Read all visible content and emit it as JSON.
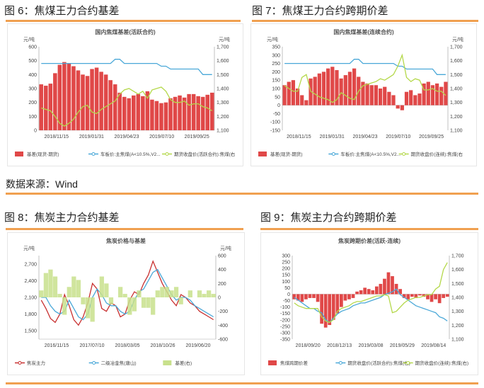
{
  "captions": {
    "fig6": "图 6：焦煤王力合约基差",
    "fig7": "图 7：焦煤王力合约跨期价差",
    "source": "数据来源：Wind",
    "fig8": "图 8：焦炭主力合约基差",
    "fig9": "图 9：焦炭主力合约跨期价差"
  },
  "chart_data": [
    {
      "type": "bar+line",
      "title": "国内焦煤基差(活跃合约)",
      "ylabel_left": "元/吨",
      "ylabel_right": "元/吨",
      "yticks_left": [
        "600",
        "500",
        "400",
        "300",
        "200",
        "100",
        "0"
      ],
      "yticks_right": [
        "1,700",
        "1,600",
        "1,500",
        "1,400",
        "1,300",
        "1,200",
        "1,100"
      ],
      "ylim_left": [
        0,
        600
      ],
      "ylim_right": [
        1100,
        1700
      ],
      "xticks": [
        "2018/11/15",
        "2019/01/31",
        "2019/04/23",
        "2019/07/10",
        "2019/09/25"
      ],
      "legend": [
        "基差(现货-期货)",
        "车板价:主焦煤(A<10.5%,V2...",
        "期货收盘价(活跃合约):焦煤(右"
      ],
      "colors": {
        "bar": "#e04848",
        "line1": "#4aa8d8",
        "line2": "#b4d84a"
      },
      "series": [
        {
          "name": "基差(现货-期货)",
          "axis": "left",
          "values": [
            330,
            320,
            335,
            410,
            470,
            490,
            480,
            460,
            430,
            400,
            390,
            440,
            450,
            420,
            400,
            360,
            330,
            270,
            240,
            230,
            250,
            260,
            245,
            280,
            220,
            210,
            195,
            200,
            230,
            240,
            250,
            235,
            260,
            260,
            245,
            240,
            255,
            270
          ]
        },
        {
          "name": "车板价:主焦煤(A<10.5%,V2...",
          "axis": "right",
          "values": [
            1580,
            1580,
            1580,
            1580,
            1580,
            1580,
            1580,
            1580,
            1580,
            1580,
            1580,
            1580,
            1580,
            1580,
            1580,
            1580,
            1610,
            1610,
            1580,
            1580,
            1580,
            1580,
            1580,
            1580,
            1580,
            1580,
            1560,
            1560,
            1540,
            1540,
            1540,
            1540,
            1540,
            1540,
            1540,
            1500,
            1500,
            1500
          ]
        },
        {
          "name": "期货收盘价(活跃合约):焦煤(右",
          "axis": "right",
          "values": [
            1260,
            1250,
            1240,
            1200,
            1150,
            1130,
            1150,
            1180,
            1230,
            1270,
            1280,
            1230,
            1220,
            1250,
            1270,
            1290,
            1310,
            1360,
            1390,
            1400,
            1380,
            1360,
            1380,
            1330,
            1390,
            1400,
            1410,
            1380,
            1320,
            1300,
            1300,
            1310,
            1280,
            1290,
            1290,
            1270,
            1260,
            1240
          ]
        }
      ]
    },
    {
      "type": "bar+line",
      "title": "国内焦煤基差(连续合约)",
      "ylabel_left": "元/吨",
      "ylabel_right": "元/吨",
      "yticks_left": [
        "350",
        "300",
        "250",
        "200",
        "150",
        "100",
        "50",
        "0",
        "-50",
        "-100",
        "-150"
      ],
      "yticks_right": [
        "1,700",
        "1,600",
        "1,500",
        "1,400",
        "1,300",
        "1,200",
        "1,100"
      ],
      "ylim_left": [
        -150,
        350
      ],
      "ylim_right": [
        1100,
        1700
      ],
      "xticks": [
        "2018/11/15",
        "2019/01/31",
        "2019/04/23",
        "2019/07/10",
        "2019/09/25"
      ],
      "legend": [
        "基差(现货-期货)",
        "车板价:主焦煤(A<10.5%,V2...",
        "期货收盘价(连续):焦煤(右"
      ],
      "colors": {
        "bar": "#e04848",
        "line1": "#4aa8d8",
        "line2": "#b4d84a"
      },
      "series": [
        {
          "name": "基差(现货-期货)",
          "axis": "left",
          "values": [
            120,
            140,
            150,
            100,
            60,
            30,
            160,
            170,
            190,
            200,
            220,
            230,
            210,
            160,
            180,
            200,
            220,
            170,
            140,
            130,
            120,
            120,
            100,
            110,
            80,
            60,
            -20,
            -30,
            80,
            90,
            60,
            70,
            130,
            140,
            120,
            130,
            110,
            140
          ]
        },
        {
          "name": "车板价:主焦煤(A<10.5%,V2...",
          "axis": "right",
          "values": [
            1580,
            1580,
            1580,
            1580,
            1580,
            1580,
            1580,
            1580,
            1580,
            1580,
            1580,
            1580,
            1580,
            1580,
            1580,
            1580,
            1610,
            1610,
            1580,
            1580,
            1580,
            1580,
            1580,
            1580,
            1580,
            1580,
            1560,
            1560,
            1540,
            1540,
            1540,
            1540,
            1540,
            1540,
            1540,
            1500,
            1500,
            1500
          ]
        },
        {
          "name": "期货收盘价(连续):焦煤(右",
          "axis": "right",
          "values": [
            1420,
            1400,
            1380,
            1380,
            1480,
            1500,
            1380,
            1360,
            1340,
            1330,
            1320,
            1300,
            1320,
            1370,
            1350,
            1330,
            1320,
            1380,
            1420,
            1430,
            1440,
            1450,
            1470,
            1460,
            1480,
            1500,
            1560,
            1640,
            1480,
            1450,
            1470,
            1460,
            1390,
            1390,
            1400,
            1380,
            1380,
            1350
          ]
        }
      ]
    },
    {
      "type": "line+area",
      "title": "焦炭价格与基差",
      "ylabel_left": "元/吨",
      "ylabel_right": "元/吨",
      "yticks_left": [
        "2,700",
        "2,400",
        "2,100",
        "1,800",
        "1,500"
      ],
      "yticks_right": [
        "600",
        "400",
        "200",
        "0",
        "-200",
        "-400",
        "-600"
      ],
      "ylim_left": [
        1350,
        2850
      ],
      "ylim_right": [
        -600,
        600
      ],
      "xticks": [
        "2016/11/15",
        "2017/07/10",
        "2018/03/05",
        "2018/10/26",
        "2019/06/20"
      ],
      "legend": [
        "焦炭主力",
        "二级冶金焦(唐山)",
        "基差(右)"
      ],
      "colors": {
        "line1": "#c83030",
        "line2": "#4aa8d8",
        "area": "#c8e08c"
      },
      "series": [
        {
          "name": "焦炭主力",
          "axis": "left",
          "values": [
            2050,
            1900,
            1720,
            1650,
            1800,
            2150,
            1950,
            1700,
            1600,
            1750,
            2000,
            2350,
            2250,
            1900,
            1850,
            2000,
            1950,
            1750,
            1800,
            2050,
            2200,
            2150,
            2350,
            2500,
            2750,
            2550,
            2350,
            2200,
            2050,
            1950,
            2150,
            2100,
            2000,
            1950,
            1850,
            1800,
            1750,
            1700
          ]
        },
        {
          "name": "二级冶金焦(唐山)",
          "axis": "left",
          "values": [
            2100,
            2100,
            1950,
            1850,
            1800,
            1850,
            2050,
            1900,
            1750,
            1700,
            1800,
            2100,
            2250,
            2150,
            2000,
            1950,
            1950,
            1850,
            1800,
            1850,
            2050,
            2200,
            2250,
            2400,
            2550,
            2600,
            2450,
            2300,
            2150,
            2050,
            2100,
            2100,
            2050,
            1950,
            1900,
            1850,
            1800,
            1750
          ]
        },
        {
          "name": "基差(右)",
          "axis": "right",
          "values": [
            100,
            350,
            400,
            300,
            50,
            -250,
            150,
            300,
            250,
            -100,
            -300,
            -350,
            0,
            300,
            200,
            -100,
            0,
            150,
            50,
            -250,
            -200,
            100,
            -150,
            -150,
            -250,
            100,
            150,
            150,
            100,
            150,
            -100,
            0,
            100,
            0,
            100,
            50,
            100,
            50
          ]
        }
      ]
    },
    {
      "type": "bar+line",
      "title": "焦炭跨期价差(活跃-连续)",
      "ylabel_left": "",
      "ylabel_right": "",
      "yticks_left": [
        "300",
        "250",
        "200",
        "150",
        "100",
        "50",
        "0",
        "-50",
        "-100",
        "-150",
        "-200",
        "-250",
        "-300",
        "-350"
      ],
      "yticks_right": [
        "1,700",
        "1,600",
        "1,500",
        "1,400",
        "1,300",
        "1,200",
        "1,100"
      ],
      "ylim_left": [
        -350,
        300
      ],
      "ylim_right": [
        1100,
        1700
      ],
      "xticks": [
        "2018/09/20",
        "2018/12/13",
        "2019/03/08",
        "2019/05/29",
        "2019/08/14"
      ],
      "legend": [
        "焦煤跨期价差",
        "期货收盘价(活跃合约):焦煤(右)",
        "期货收盘价(连续):焦煤(右)"
      ],
      "colors": {
        "bar": "#e04848",
        "line1": "#4aa8d8",
        "line2": "#b4d84a"
      },
      "series": [
        {
          "name": "焦煤跨期价差",
          "axis": "left",
          "values": [
            -40,
            -50,
            -60,
            -40,
            -30,
            -30,
            -60,
            -230,
            -260,
            -240,
            -200,
            -150,
            -100,
            -50,
            -40,
            -30,
            20,
            30,
            50,
            40,
            30,
            60,
            80,
            120,
            170,
            140,
            80,
            40,
            -30,
            -40,
            -20,
            -30,
            -10,
            -20,
            -40,
            -60,
            -40,
            -70,
            -30,
            -20
          ]
        },
        {
          "name": "期货收盘价(活跃合约):焦煤(右)",
          "axis": "right",
          "values": [
            1400,
            1380,
            1360,
            1340,
            1320,
            1320,
            1300,
            1290,
            1240,
            1220,
            1250,
            1280,
            1300,
            1310,
            1320,
            1340,
            1350,
            1360,
            1360,
            1370,
            1380,
            1390,
            1400,
            1420,
            1430,
            1440,
            1460,
            1420,
            1400,
            1380,
            1360,
            1340,
            1330,
            1320,
            1310,
            1300,
            1290,
            1260,
            1250,
            1230
          ]
        },
        {
          "name": "期货收盘价(连续):焦煤(右)",
          "axis": "right",
          "values": [
            1360,
            1340,
            1330,
            1320,
            1320,
            1320,
            1320,
            1260,
            1230,
            1220,
            1240,
            1300,
            1320,
            1330,
            1340,
            1360,
            1370,
            1370,
            1380,
            1390,
            1400,
            1410,
            1410,
            1420,
            1410,
            1290,
            1300,
            1330,
            1360,
            1380,
            1390,
            1400,
            1400,
            1410,
            1420,
            1420,
            1460,
            1480,
            1600,
            1650
          ]
        }
      ]
    }
  ]
}
